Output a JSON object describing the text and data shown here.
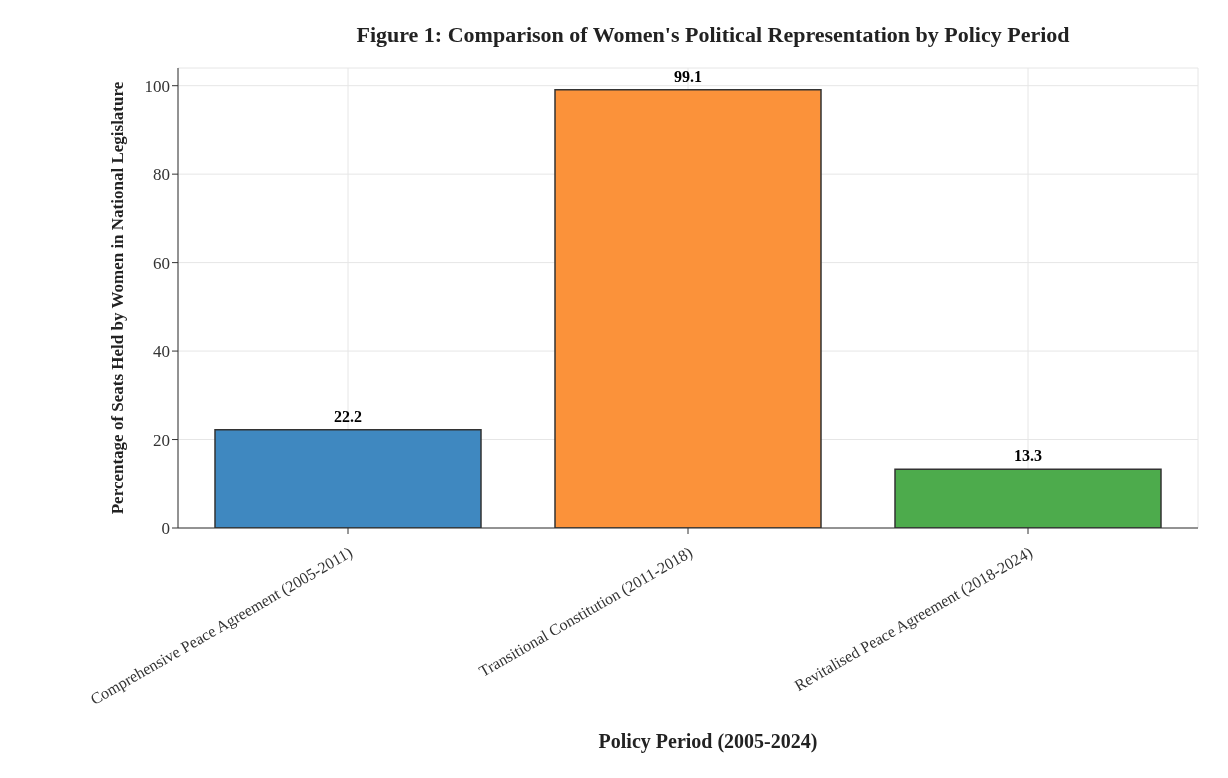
{
  "chart_data": {
    "type": "bar",
    "title": "Figure 1: Comparison of Women's Political Representation by Policy Period",
    "xlabel": "Policy Period (2005-2024)",
    "ylabel": "Percentage of Seats Held by Women in National Legislature",
    "categories": [
      "Comprehensive Peace Agreement (2005-2011)",
      "Transitional Constitution (2011-2018)",
      "Revitalised Peace Agreement (2018-2024)"
    ],
    "values": [
      22.2,
      99.1,
      13.3
    ],
    "colors": [
      "#3f88c0",
      "#fb923a",
      "#4dab4c"
    ],
    "ylim": [
      0,
      104
    ],
    "yticks": [
      0,
      20,
      40,
      60,
      80,
      100
    ],
    "grid": true,
    "data_labels": true
  }
}
